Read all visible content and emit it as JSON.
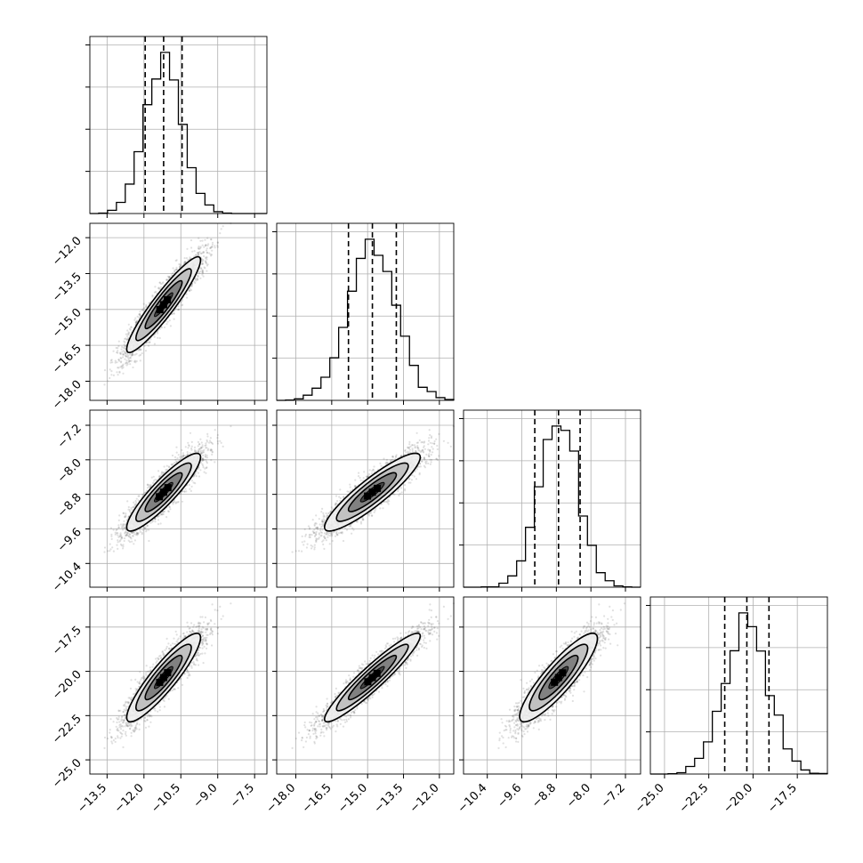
{
  "chart_data": {
    "type": "corner",
    "style": {
      "scatter_color": "#555555",
      "contour_color": "#000000",
      "line_color": "#000000",
      "grid": true
    },
    "params": [
      {
        "ticks": [
          "−13.5",
          "−12.0",
          "−10.5",
          "−9.0",
          "−7.5"
        ],
        "tick_values": [
          -13.5,
          -12.0,
          -10.5,
          -9.0,
          -7.5
        ],
        "range": [
          -14.2,
          -7.0
        ],
        "mean": -11.2,
        "std": 0.75,
        "quantiles": [
          -11.95,
          -11.2,
          -10.45
        ]
      },
      {
        "ticks": [
          "−18.0",
          "−16.5",
          "−15.0",
          "−13.5",
          "−12.0"
        ],
        "tick_values": [
          -18.0,
          -16.5,
          -15.0,
          -13.5,
          -12.0
        ],
        "range": [
          -18.8,
          -11.4
        ],
        "mean": -14.8,
        "std": 1.0,
        "quantiles": [
          -15.8,
          -14.8,
          -13.8
        ]
      },
      {
        "ticks": [
          "−10.4",
          "−9.6",
          "−8.8",
          "−8.0",
          "−7.2"
        ],
        "tick_values": [
          -10.4,
          -9.6,
          -8.8,
          -8.0,
          -7.2
        ],
        "range": [
          -10.95,
          -6.85
        ],
        "mean": -8.75,
        "std": 0.45,
        "quantiles": [
          -9.3,
          -8.75,
          -8.25
        ]
      },
      {
        "ticks": [
          "−25.0",
          "−22.5",
          "−20.0",
          "−17.5"
        ],
        "tick_values": [
          -25.0,
          -22.5,
          -20.0,
          -17.5
        ],
        "range": [
          -25.8,
          -15.8
        ],
        "mean": -20.35,
        "std": 1.25,
        "quantiles": [
          -21.6,
          -20.35,
          -19.1
        ]
      }
    ],
    "correlations": [
      [
        1.0,
        0.93,
        0.9,
        0.9
      ],
      [
        0.93,
        1.0,
        0.9,
        0.94
      ],
      [
        0.9,
        0.9,
        1.0,
        0.88
      ],
      [
        0.9,
        0.94,
        0.88,
        1.0
      ]
    ]
  }
}
